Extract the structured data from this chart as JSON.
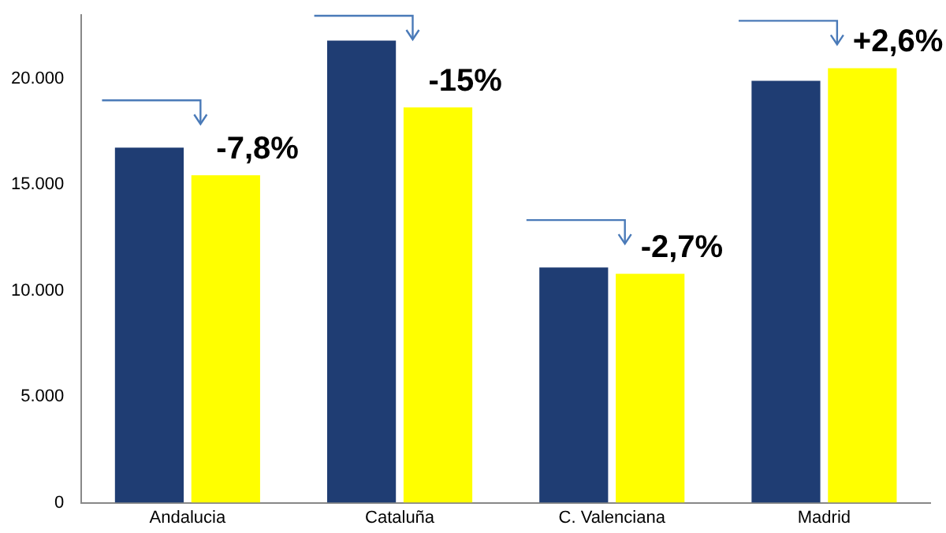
{
  "chart_data": {
    "type": "bar",
    "categories": [
      "Andalucia",
      "Cataluña",
      "C. Valenciana",
      "Madrid"
    ],
    "series": [
      {
        "color": "#1f3d73",
        "values": [
          16750,
          21800,
          11100,
          19900
        ]
      },
      {
        "color": "#ffff00",
        "values": [
          15450,
          18650,
          10800,
          20500
        ]
      }
    ],
    "ylim": [
      0,
      23000
    ],
    "yticks": [
      0,
      {
        "value": 5000,
        "label": "5.000"
      },
      {
        "value": 10000,
        "label": "10.000"
      },
      {
        "value": 15000,
        "label": "15.000"
      },
      {
        "value": 20000,
        "label": "20.000"
      }
    ],
    "grid": false,
    "legend": false,
    "annotations": [
      {
        "text": "-7,8%",
        "x": "Andalucia",
        "y": 15450
      },
      {
        "text": "-15%",
        "x": "Cataluña",
        "y": 18650
      },
      {
        "text": "-2,7%",
        "x": "C. Valenciana",
        "y": 10800
      },
      {
        "text": "+2,6%",
        "x": "Madrid",
        "y": 20500
      }
    ]
  }
}
